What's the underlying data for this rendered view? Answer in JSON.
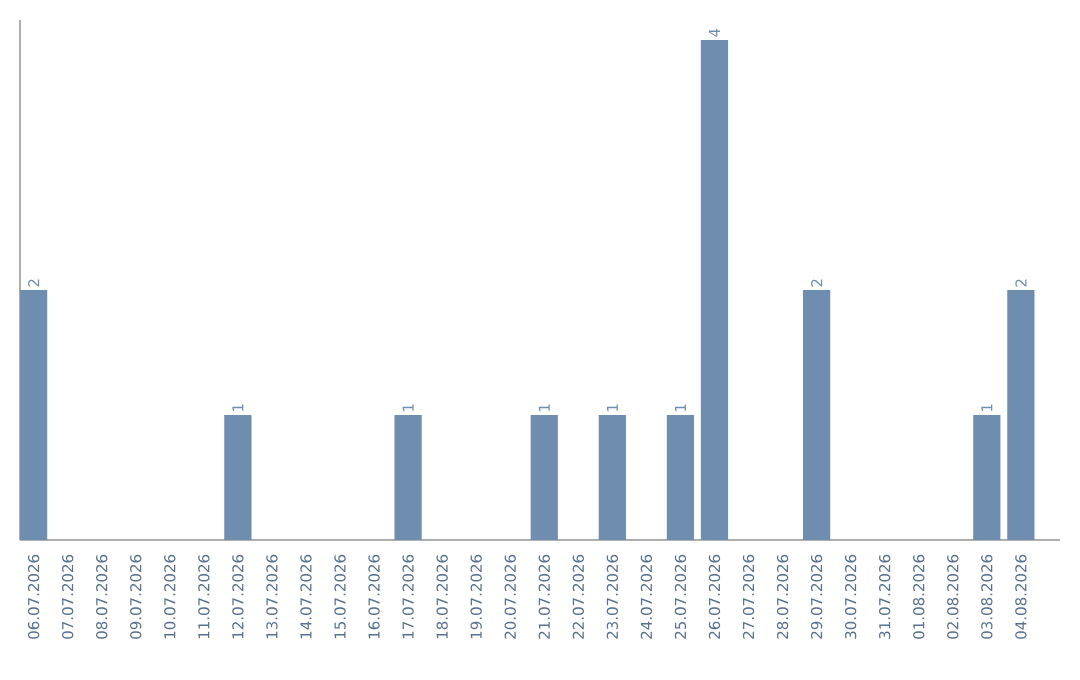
{
  "chart_data": {
    "type": "bar",
    "color": "#6e8daf",
    "categories": [
      "06.07.2026",
      "07.07.2026",
      "08.07.2026",
      "09.07.2026",
      "10.07.2026",
      "11.07.2026",
      "12.07.2026",
      "13.07.2026",
      "14.07.2026",
      "15.07.2026",
      "16.07.2026",
      "17.07.2026",
      "18.07.2026",
      "19.07.2026",
      "20.07.2026",
      "21.07.2026",
      "22.07.2026",
      "23.07.2026",
      "24.07.2026",
      "25.07.2026",
      "26.07.2026",
      "27.07.2026",
      "28.07.2026",
      "29.07.2026",
      "30.07.2026",
      "31.07.2026",
      "01.08.2026",
      "02.08.2026",
      "03.08.2026",
      "04.08.2026"
    ],
    "values": [
      2,
      0,
      0,
      0,
      0,
      0,
      1,
      0,
      0,
      0,
      0,
      1,
      0,
      0,
      0,
      1,
      0,
      1,
      0,
      1,
      4,
      0,
      0,
      2,
      0,
      0,
      0,
      0,
      1,
      2
    ],
    "value_labels": [
      "2",
      null,
      null,
      null,
      null,
      null,
      "1",
      null,
      null,
      null,
      null,
      "1",
      null,
      null,
      null,
      "1",
      null,
      "1",
      null,
      "1",
      "4",
      null,
      null,
      "2",
      null,
      null,
      null,
      null,
      "1",
      "2"
    ]
  }
}
